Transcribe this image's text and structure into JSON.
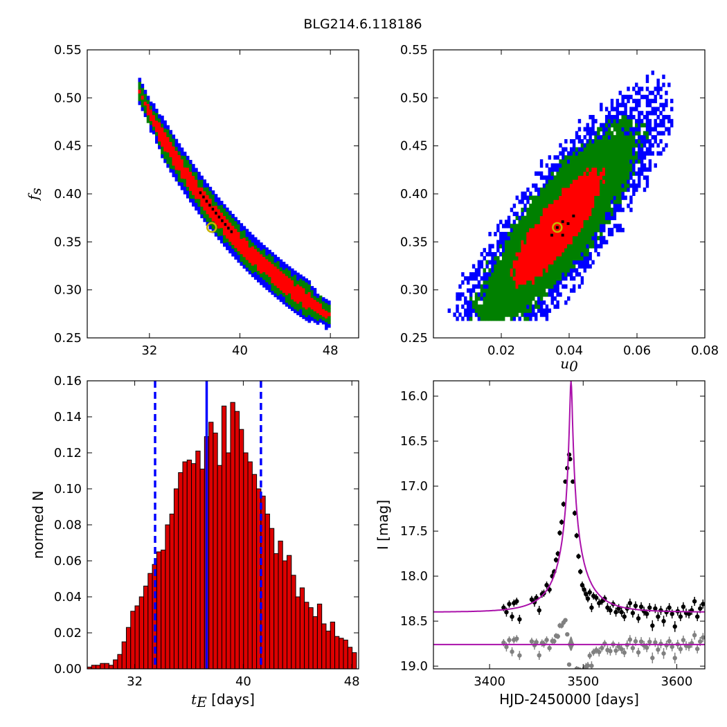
{
  "figure": {
    "title": "BLG214.6.118186"
  },
  "colors": {
    "sigma1": "#ff0000",
    "sigma2": "#008000",
    "sigma3": "#0000ff",
    "peak": "#000000",
    "marker_edge": "#c8b400",
    "bar_fill": "#dd0000",
    "vline": "#0000ff",
    "model": "#aa10aa",
    "residual": "#808080"
  },
  "chart_data": [
    {
      "id": "te-fs",
      "type": "heatmap",
      "xlabel": "",
      "ylabel": "f_s",
      "ylabel_parts": {
        "main": "f",
        "sub": "s"
      },
      "xlim": [
        26.5,
        50.5
      ],
      "ylim": [
        0.25,
        0.55
      ],
      "xticks": [
        32,
        40,
        48
      ],
      "yticks": [
        0.25,
        0.3,
        0.35,
        0.4,
        0.45,
        0.5,
        0.55
      ],
      "ytick_labels": [
        "0.25",
        "0.30",
        "0.35",
        "0.40",
        "0.45",
        "0.50",
        "0.55"
      ],
      "best_fit": {
        "x": 37.5,
        "y": 0.365
      },
      "relation": {
        "x": [
          31,
          32,
          33,
          34,
          35,
          36,
          37,
          38,
          39,
          40,
          41,
          42,
          43,
          44,
          45,
          46,
          47,
          48
        ],
        "y": [
          0.51,
          0.485,
          0.462,
          0.442,
          0.424,
          0.407,
          0.391,
          0.376,
          0.362,
          0.349,
          0.337,
          0.326,
          0.316,
          0.306,
          0.297,
          0.289,
          0.281,
          0.274
        ]
      },
      "density_widths": {
        "sigma1": 0.009,
        "sigma2": 0.016,
        "sigma3": 0.022
      }
    },
    {
      "id": "u0-fs",
      "type": "heatmap",
      "xlabel": "u_0",
      "xlabel_parts": {
        "main": "u",
        "sub": "0"
      },
      "ylabel": "",
      "xlim": [
        0.0,
        0.08
      ],
      "ylim": [
        0.25,
        0.55
      ],
      "xticks": [
        0.02,
        0.04,
        0.06,
        0.08
      ],
      "xtick_labels": [
        "0.02",
        "0.04",
        "0.06",
        "0.08"
      ],
      "yticks": [
        0.25,
        0.3,
        0.35,
        0.4,
        0.45,
        0.5,
        0.55
      ],
      "ytick_labels": [
        "0.25",
        "0.30",
        "0.35",
        "0.40",
        "0.45",
        "0.50",
        "0.55"
      ],
      "best_fit": {
        "x": 0.0365,
        "y": 0.365
      },
      "correlation": {
        "x0": 0.0365,
        "y0": 0.365,
        "slope": 3.8,
        "sx": 0.0085,
        "sy_perp": 0.028
      }
    },
    {
      "id": "te-hist",
      "type": "bar",
      "xlabel": "t_E [days]",
      "xlabel_parts": {
        "main": "t",
        "sub": "E",
        "rest": " [days]"
      },
      "ylabel": "normed N",
      "xlim": [
        28.5,
        48.5
      ],
      "ylim": [
        0.0,
        0.16
      ],
      "xticks": [
        32,
        40,
        48
      ],
      "yticks": [
        0.0,
        0.02,
        0.04,
        0.06,
        0.08,
        0.1,
        0.12,
        0.14,
        0.16
      ],
      "ytick_labels": [
        "0.00",
        "0.02",
        "0.04",
        "0.06",
        "0.08",
        "0.10",
        "0.12",
        "0.14",
        "0.16"
      ],
      "bin_start": 28.5,
      "bin_width": 0.32,
      "values": [
        0.001,
        0.002,
        0.002,
        0.003,
        0.003,
        0.002,
        0.005,
        0.008,
        0.015,
        0.023,
        0.032,
        0.035,
        0.04,
        0.046,
        0.053,
        0.058,
        0.065,
        0.066,
        0.08,
        0.086,
        0.1,
        0.109,
        0.115,
        0.116,
        0.114,
        0.121,
        0.111,
        0.129,
        0.137,
        0.131,
        0.113,
        0.146,
        0.12,
        0.148,
        0.143,
        0.133,
        0.12,
        0.115,
        0.108,
        0.1,
        0.096,
        0.086,
        0.078,
        0.064,
        0.071,
        0.06,
        0.063,
        0.052,
        0.04,
        0.045,
        0.037,
        0.034,
        0.029,
        0.036,
        0.025,
        0.021,
        0.026,
        0.018,
        0.017,
        0.016,
        0.012,
        0.009,
        0.008,
        0.005,
        0.004,
        0.003,
        0.002,
        0.002
      ],
      "vlines": {
        "median": 37.3,
        "lower": 33.5,
        "upper": 41.3
      }
    },
    {
      "id": "light-curve",
      "type": "scatter",
      "xlabel": "HJD-2450000 [days]",
      "ylabel": "I [mag]",
      "xlim": [
        3340,
        3630
      ],
      "ylim": [
        19.03,
        15.83
      ],
      "xticks": [
        3400,
        3500,
        3600
      ],
      "xtick_labels": [
        "3400",
        "3500",
        "3600"
      ],
      "yticks": [
        16.0,
        16.5,
        17.0,
        17.5,
        18.0,
        18.5,
        19.0
      ],
      "ytick_labels": [
        "16.0",
        "16.5",
        "17.0",
        "17.5",
        "18.0",
        "18.5",
        "19.0"
      ],
      "model": {
        "t0": 3487,
        "tE": 37.5,
        "u0": 0.0365,
        "fs": 0.365,
        "I_base": 18.4
      },
      "residual_baseline": 18.76,
      "points_t": [
        3415,
        3418,
        3421,
        3424,
        3426,
        3429,
        3432,
        3445,
        3448,
        3450,
        3453,
        3456,
        3458,
        3461,
        3464,
        3467,
        3469,
        3471,
        3473,
        3475,
        3477,
        3479,
        3481,
        3483,
        3485,
        3486,
        3489,
        3491,
        3493,
        3495,
        3497,
        3499,
        3501,
        3503,
        3505,
        3507,
        3509,
        3511,
        3514,
        3517,
        3520,
        3523,
        3526,
        3529,
        3532,
        3535,
        3538,
        3541,
        3544,
        3547,
        3550,
        3553,
        3556,
        3559,
        3562,
        3565,
        3568,
        3571,
        3574,
        3577,
        3580,
        3583,
        3586,
        3589,
        3592,
        3595,
        3598,
        3601,
        3604,
        3607,
        3610,
        3613,
        3616,
        3619,
        3622,
        3625,
        3628
      ],
      "points_I": [
        18.35,
        18.4,
        18.31,
        18.45,
        18.3,
        18.28,
        18.48,
        18.26,
        18.29,
        18.24,
        18.38,
        18.2,
        18.19,
        18.1,
        18.15,
        18.0,
        17.95,
        17.82,
        17.75,
        17.52,
        17.4,
        17.2,
        16.95,
        16.8,
        16.65,
        16.7,
        16.95,
        17.3,
        17.55,
        17.78,
        17.95,
        18.1,
        18.15,
        18.2,
        18.25,
        18.18,
        18.35,
        18.22,
        18.24,
        18.3,
        18.28,
        18.25,
        18.35,
        18.38,
        18.31,
        18.4,
        18.36,
        18.4,
        18.45,
        18.36,
        18.3,
        18.41,
        18.33,
        18.47,
        18.34,
        18.39,
        18.42,
        18.35,
        18.55,
        18.36,
        18.45,
        18.38,
        18.5,
        18.4,
        18.35,
        18.42,
        18.56,
        18.39,
        18.45,
        18.34,
        18.41,
        18.42,
        18.38,
        18.28,
        18.45,
        18.36,
        18.31
      ],
      "points_err": [
        0.04,
        0.05,
        0.04,
        0.05,
        0.04,
        0.04,
        0.05,
        0.04,
        0.05,
        0.04,
        0.05,
        0.04,
        0.04,
        0.04,
        0.04,
        0.04,
        0.03,
        0.03,
        0.03,
        0.03,
        0.03,
        0.03,
        0.02,
        0.02,
        0.02,
        0.02,
        0.02,
        0.03,
        0.03,
        0.03,
        0.03,
        0.04,
        0.04,
        0.04,
        0.04,
        0.04,
        0.05,
        0.04,
        0.04,
        0.05,
        0.04,
        0.04,
        0.05,
        0.05,
        0.04,
        0.05,
        0.05,
        0.05,
        0.05,
        0.05,
        0.05,
        0.05,
        0.05,
        0.05,
        0.05,
        0.05,
        0.05,
        0.05,
        0.06,
        0.05,
        0.05,
        0.05,
        0.06,
        0.05,
        0.05,
        0.05,
        0.06,
        0.05,
        0.05,
        0.05,
        0.05,
        0.05,
        0.05,
        0.05,
        0.05,
        0.05,
        0.05
      ]
    }
  ]
}
